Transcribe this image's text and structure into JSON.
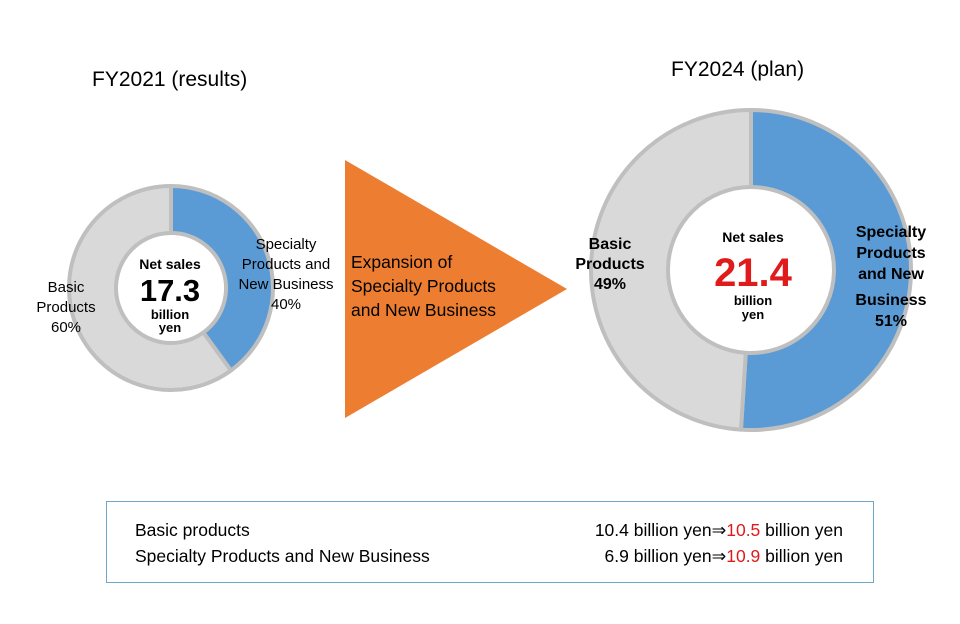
{
  "chart_data": [
    {
      "type": "donut",
      "title": "FY2021 (results)",
      "center": {
        "label": "Net sales",
        "value": "17.3",
        "unit_line1": "billion",
        "unit_line2": "yen"
      },
      "slices": [
        {
          "label_lines": [
            "Specialty",
            "Products and",
            "New Business"
          ],
          "percent_label": "40%",
          "value": 40,
          "color": "#5b9bd5"
        },
        {
          "label_lines": [
            "Basic",
            "Products"
          ],
          "percent_label": "60%",
          "value": 60,
          "color": "#d9d9d9"
        }
      ],
      "ring_stroke": "#bfbfbf"
    },
    {
      "type": "donut",
      "title": "FY2024 (plan)",
      "center": {
        "label": "Net sales",
        "value": "21.4",
        "unit_line1": "billion",
        "unit_line2": "yen",
        "value_color": "#e01b1b"
      },
      "slices": [
        {
          "label_lines": [
            "Specialty",
            "Products",
            "and New",
            "Business"
          ],
          "percent_label": "51%",
          "value": 51,
          "color": "#5b9bd5"
        },
        {
          "label_lines": [
            "Basic",
            "Products"
          ],
          "percent_label": "49%",
          "value": 49,
          "color": "#d9d9d9"
        }
      ],
      "ring_stroke": "#bfbfbf"
    }
  ],
  "arrow": {
    "lines": [
      "Expansion  of",
      "Specialty Products",
      "and New Business"
    ],
    "color": "#ed7d31"
  },
  "summary": {
    "rows": [
      {
        "name": "Basic products",
        "from": "10.4 billion  yen",
        "to": "10.5",
        "to_unit": " billion  yen"
      },
      {
        "name": "Specialty Products and New Business",
        "from": "6.9 billion  yen",
        "to": "10.9",
        "to_unit": " billion  yen"
      }
    ],
    "arrow_symbol": "⇒",
    "highlight_color": "#e01b1b",
    "border_color": "#6fa7c7"
  }
}
